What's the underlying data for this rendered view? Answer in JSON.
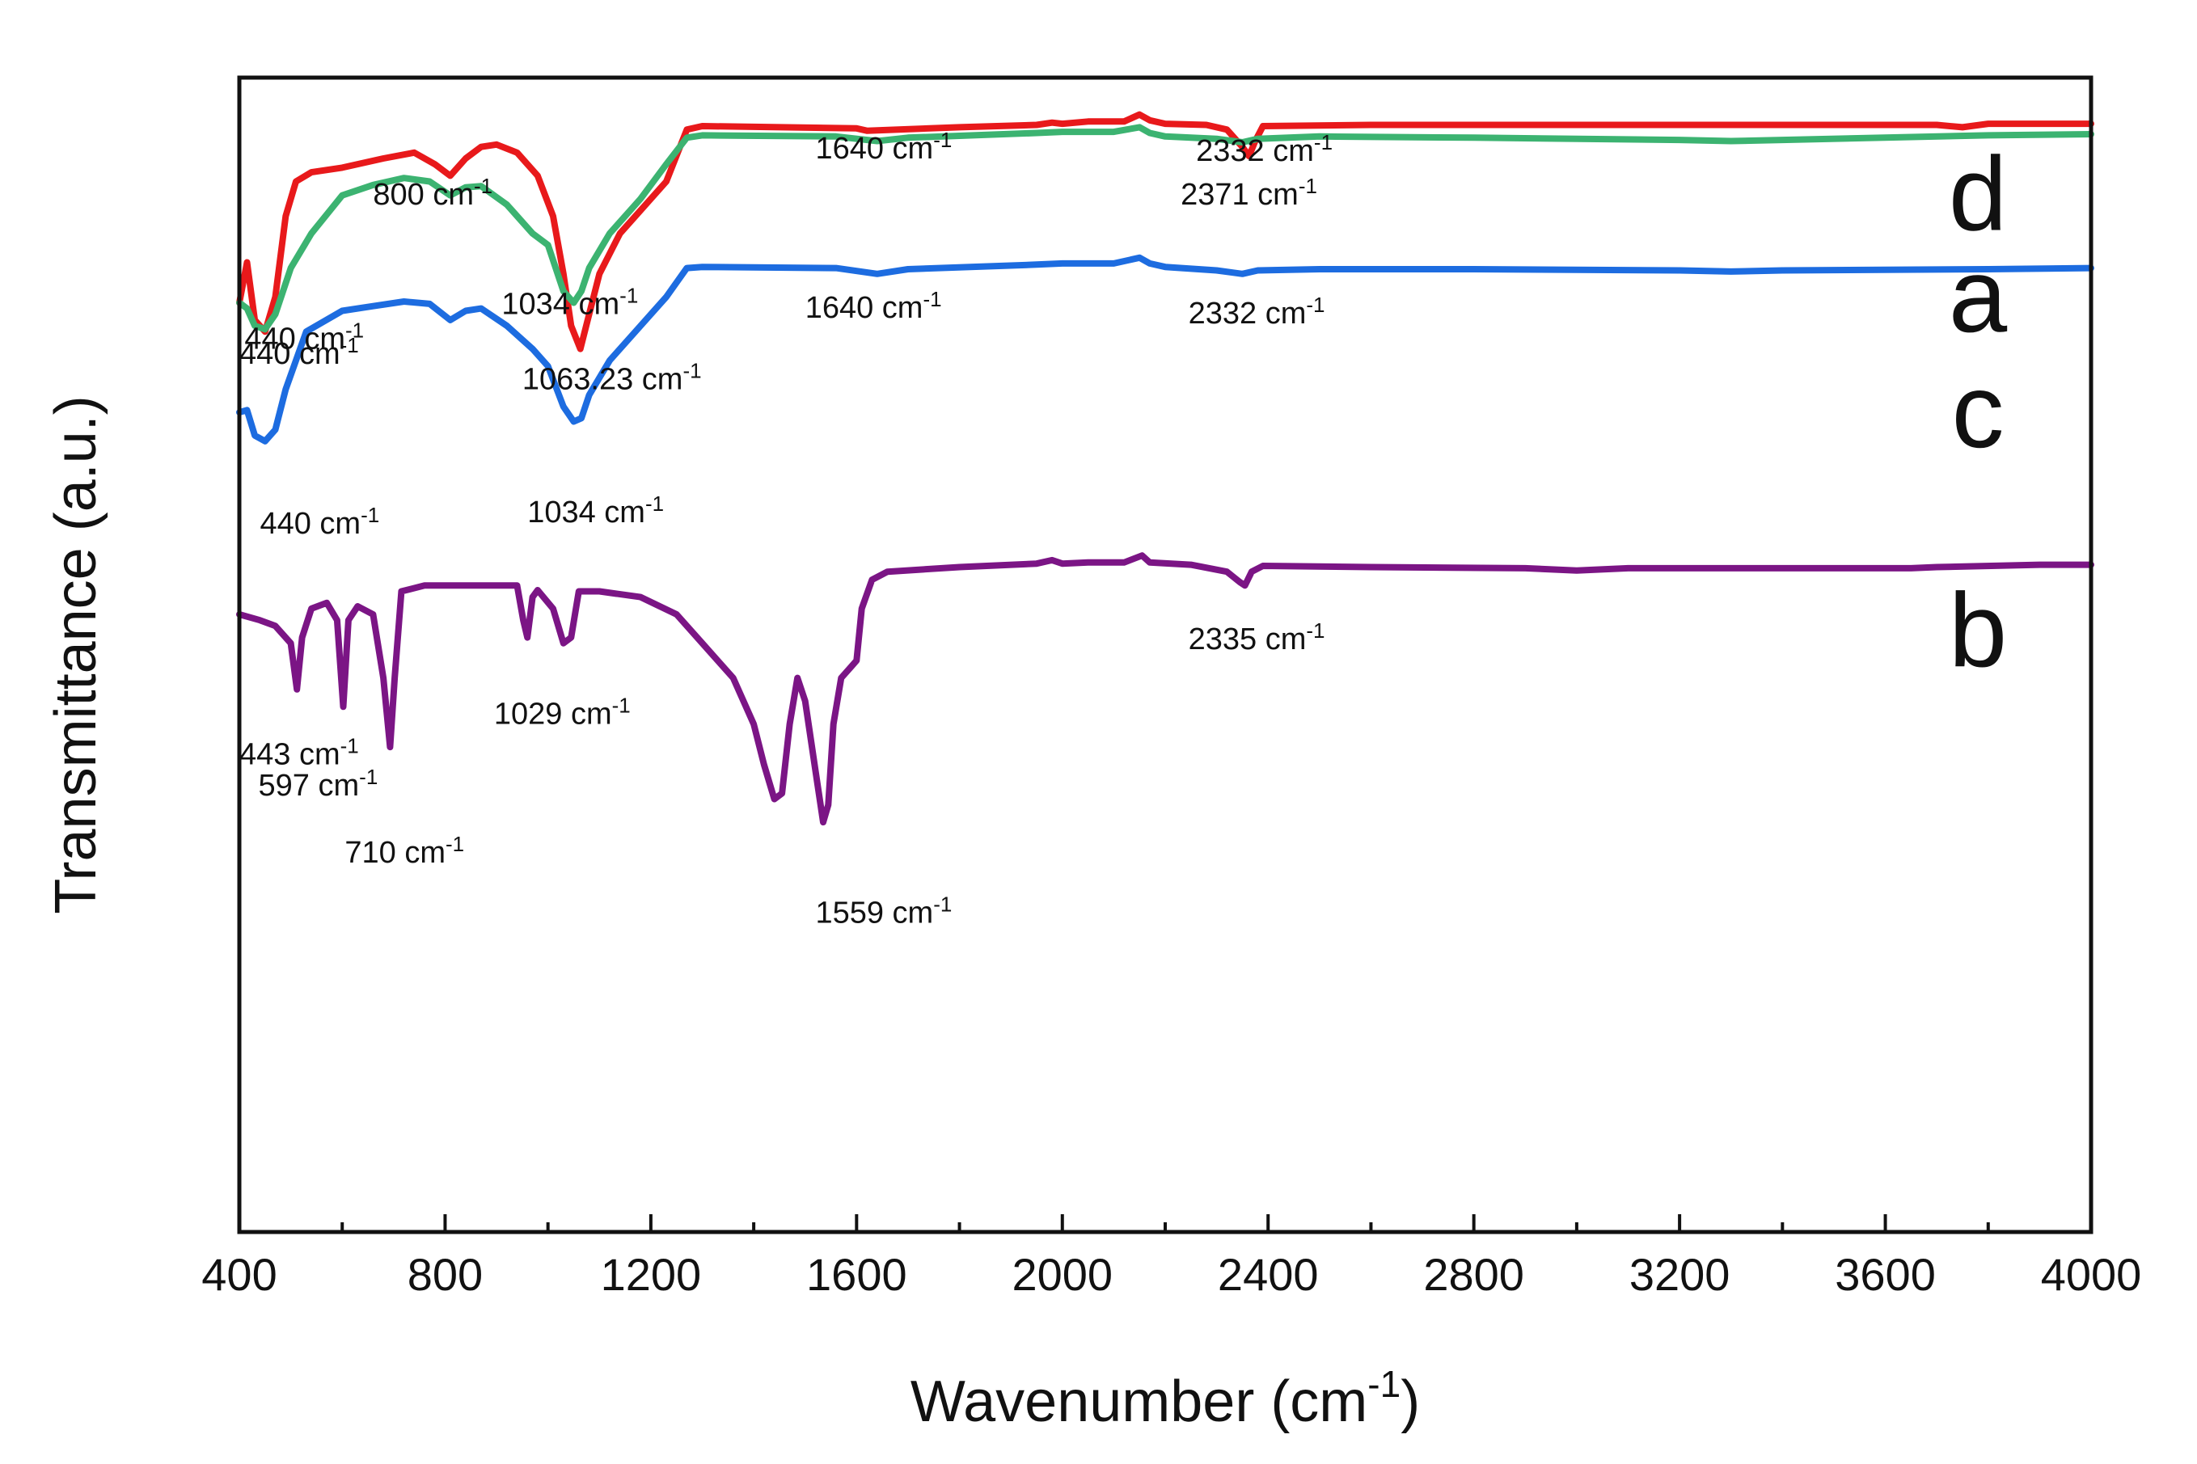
{
  "chart_data": {
    "type": "line",
    "xlabel": "Wavenumber (cm",
    "xlabel_sup": "-1",
    "xlabel_close": ")",
    "ylabel": "Transmittance (a.u.)",
    "xlim": [
      400,
      4000
    ],
    "ylim": [
      0,
      100
    ],
    "x_ticks": [
      400,
      800,
      1200,
      1600,
      2000,
      2400,
      2800,
      3200,
      3600,
      4000
    ],
    "grid": false,
    "peak_unit": "cm",
    "peak_unit_sup": "-1",
    "series": [
      {
        "name": "a",
        "color": "#e8191b",
        "points": [
          [
            400,
            80.5
          ],
          [
            415,
            84.0
          ],
          [
            430,
            79.0
          ],
          [
            450,
            78.0
          ],
          [
            470,
            81.0
          ],
          [
            490,
            88.0
          ],
          [
            510,
            91.0
          ],
          [
            540,
            91.8
          ],
          [
            600,
            92.2
          ],
          [
            680,
            93.0
          ],
          [
            740,
            93.5
          ],
          [
            780,
            92.5
          ],
          [
            810,
            91.5
          ],
          [
            840,
            93.0
          ],
          [
            870,
            94.0
          ],
          [
            900,
            94.2
          ],
          [
            940,
            93.5
          ],
          [
            980,
            91.5
          ],
          [
            1010,
            88.0
          ],
          [
            1030,
            83.0
          ],
          [
            1045,
            78.5
          ],
          [
            1063,
            76.5
          ],
          [
            1080,
            79.5
          ],
          [
            1100,
            83.0
          ],
          [
            1140,
            86.5
          ],
          [
            1180,
            88.5
          ],
          [
            1230,
            91.0
          ],
          [
            1270,
            95.5
          ],
          [
            1300,
            95.8
          ],
          [
            1600,
            95.6
          ],
          [
            1620,
            95.4
          ],
          [
            1800,
            95.7
          ],
          [
            1950,
            95.9
          ],
          [
            1980,
            96.1
          ],
          [
            2000,
            96.0
          ],
          [
            2050,
            96.2
          ],
          [
            2120,
            96.2
          ],
          [
            2150,
            96.8
          ],
          [
            2170,
            96.3
          ],
          [
            2200,
            96.0
          ],
          [
            2280,
            95.9
          ],
          [
            2320,
            95.5
          ],
          [
            2350,
            94.0
          ],
          [
            2363,
            93.2
          ],
          [
            2375,
            94.5
          ],
          [
            2390,
            95.8
          ],
          [
            2600,
            95.9
          ],
          [
            3000,
            95.9
          ],
          [
            3400,
            95.9
          ],
          [
            3700,
            95.9
          ],
          [
            3750,
            95.7
          ],
          [
            3800,
            96.0
          ],
          [
            4000,
            96.0
          ]
        ]
      },
      {
        "name": "b",
        "color": "#7b1585",
        "points": [
          [
            400,
            53.5
          ],
          [
            440,
            53.0
          ],
          [
            470,
            52.5
          ],
          [
            500,
            51.0
          ],
          [
            512,
            47.0
          ],
          [
            522,
            51.5
          ],
          [
            540,
            54.0
          ],
          [
            570,
            54.5
          ],
          [
            590,
            53.0
          ],
          [
            602,
            45.5
          ],
          [
            612,
            53.0
          ],
          [
            630,
            54.2
          ],
          [
            660,
            53.5
          ],
          [
            680,
            48.0
          ],
          [
            693,
            42.0
          ],
          [
            702,
            48.0
          ],
          [
            715,
            55.5
          ],
          [
            760,
            56.0
          ],
          [
            940,
            56.0
          ],
          [
            952,
            53.0
          ],
          [
            960,
            51.5
          ],
          [
            970,
            55.0
          ],
          [
            980,
            55.6
          ],
          [
            1010,
            54.0
          ],
          [
            1030,
            51.0
          ],
          [
            1045,
            51.5
          ],
          [
            1060,
            55.5
          ],
          [
            1100,
            55.5
          ],
          [
            1180,
            55.0
          ],
          [
            1250,
            53.5
          ],
          [
            1300,
            51.0
          ],
          [
            1360,
            48.0
          ],
          [
            1400,
            44.0
          ],
          [
            1420,
            40.5
          ],
          [
            1440,
            37.5
          ],
          [
            1455,
            38.0
          ],
          [
            1470,
            44.0
          ],
          [
            1485,
            48.0
          ],
          [
            1500,
            46.0
          ],
          [
            1520,
            40.0
          ],
          [
            1535,
            35.5
          ],
          [
            1545,
            37.0
          ],
          [
            1555,
            44.0
          ],
          [
            1570,
            48.0
          ],
          [
            1590,
            49.0
          ],
          [
            1600,
            49.5
          ],
          [
            1610,
            54.0
          ],
          [
            1630,
            56.5
          ],
          [
            1660,
            57.2
          ],
          [
            1800,
            57.6
          ],
          [
            1950,
            57.9
          ],
          [
            1980,
            58.2
          ],
          [
            2000,
            57.9
          ],
          [
            2050,
            58.0
          ],
          [
            2120,
            58.0
          ],
          [
            2155,
            58.6
          ],
          [
            2170,
            58.0
          ],
          [
            2250,
            57.8
          ],
          [
            2320,
            57.2
          ],
          [
            2345,
            56.3
          ],
          [
            2355,
            56.0
          ],
          [
            2368,
            57.2
          ],
          [
            2390,
            57.7
          ],
          [
            2600,
            57.6
          ],
          [
            2900,
            57.5
          ],
          [
            3000,
            57.3
          ],
          [
            3100,
            57.5
          ],
          [
            3300,
            57.5
          ],
          [
            3650,
            57.5
          ],
          [
            3700,
            57.6
          ],
          [
            3900,
            57.8
          ],
          [
            4000,
            57.8
          ]
        ]
      },
      {
        "name": "c",
        "color": "#1d6ce0",
        "points": [
          [
            400,
            71.0
          ],
          [
            415,
            71.2
          ],
          [
            430,
            69.0
          ],
          [
            450,
            68.5
          ],
          [
            470,
            69.5
          ],
          [
            490,
            73.0
          ],
          [
            530,
            78.0
          ],
          [
            600,
            79.8
          ],
          [
            660,
            80.2
          ],
          [
            720,
            80.6
          ],
          [
            770,
            80.4
          ],
          [
            810,
            79.0
          ],
          [
            840,
            79.8
          ],
          [
            870,
            80.0
          ],
          [
            920,
            78.5
          ],
          [
            970,
            76.5
          ],
          [
            1000,
            75.0
          ],
          [
            1030,
            71.5
          ],
          [
            1050,
            70.2
          ],
          [
            1065,
            70.5
          ],
          [
            1080,
            72.5
          ],
          [
            1120,
            75.5
          ],
          [
            1180,
            78.5
          ],
          [
            1230,
            81.0
          ],
          [
            1270,
            83.5
          ],
          [
            1300,
            83.6
          ],
          [
            1560,
            83.5
          ],
          [
            1640,
            83.0
          ],
          [
            1700,
            83.4
          ],
          [
            1950,
            83.8
          ],
          [
            2000,
            83.9
          ],
          [
            2100,
            83.9
          ],
          [
            2150,
            84.4
          ],
          [
            2170,
            83.9
          ],
          [
            2200,
            83.6
          ],
          [
            2300,
            83.3
          ],
          [
            2350,
            83.0
          ],
          [
            2380,
            83.3
          ],
          [
            2500,
            83.4
          ],
          [
            2800,
            83.4
          ],
          [
            3200,
            83.3
          ],
          [
            3300,
            83.2
          ],
          [
            3400,
            83.3
          ],
          [
            3800,
            83.4
          ],
          [
            4000,
            83.5
          ]
        ]
      },
      {
        "name": "d",
        "color": "#3cb371",
        "points": [
          [
            400,
            80.5
          ],
          [
            415,
            80.0
          ],
          [
            430,
            78.5
          ],
          [
            450,
            78.2
          ],
          [
            470,
            79.5
          ],
          [
            500,
            83.5
          ],
          [
            540,
            86.5
          ],
          [
            600,
            89.8
          ],
          [
            660,
            90.7
          ],
          [
            720,
            91.3
          ],
          [
            770,
            91.0
          ],
          [
            810,
            89.8
          ],
          [
            840,
            90.5
          ],
          [
            870,
            90.6
          ],
          [
            920,
            89.0
          ],
          [
            970,
            86.5
          ],
          [
            1000,
            85.5
          ],
          [
            1030,
            81.5
          ],
          [
            1050,
            80.5
          ],
          [
            1065,
            81.5
          ],
          [
            1080,
            83.5
          ],
          [
            1120,
            86.5
          ],
          [
            1180,
            89.5
          ],
          [
            1230,
            92.5
          ],
          [
            1270,
            94.8
          ],
          [
            1300,
            95.0
          ],
          [
            1560,
            94.9
          ],
          [
            1640,
            94.5
          ],
          [
            1700,
            94.8
          ],
          [
            1950,
            95.2
          ],
          [
            2000,
            95.3
          ],
          [
            2100,
            95.3
          ],
          [
            2150,
            95.7
          ],
          [
            2170,
            95.2
          ],
          [
            2200,
            94.9
          ],
          [
            2300,
            94.7
          ],
          [
            2350,
            94.4
          ],
          [
            2380,
            94.7
          ],
          [
            2500,
            94.9
          ],
          [
            2800,
            94.8
          ],
          [
            3200,
            94.6
          ],
          [
            3300,
            94.5
          ],
          [
            3400,
            94.6
          ],
          [
            3800,
            95.0
          ],
          [
            4000,
            95.1
          ]
        ]
      }
    ],
    "series_labels": [
      {
        "text": "a",
        "x": 3780,
        "y": 78.0
      },
      {
        "text": "b",
        "x": 3780,
        "y": 49.0
      },
      {
        "text": "c",
        "x": 3780,
        "y": 68.0
      },
      {
        "text": "d",
        "x": 3780,
        "y": 86.8
      }
    ],
    "annotations": [
      {
        "text": "440",
        "x": 400,
        "y": 75.2
      },
      {
        "text": "1063.23",
        "x": 950,
        "y": 73.0
      },
      {
        "text": "800",
        "x": 660,
        "y": 89.0
      },
      {
        "text": "2371",
        "x": 2230,
        "y": 89.0
      },
      {
        "text": "443",
        "x": 400,
        "y": 40.5
      },
      {
        "text": "597",
        "x": 437,
        "y": 37.8
      },
      {
        "text": "710",
        "x": 605,
        "y": 32.0
      },
      {
        "text": "1029",
        "x": 895,
        "y": 44.0
      },
      {
        "text": "1559",
        "x": 1520,
        "y": 26.8
      },
      {
        "text": "2335",
        "x": 2245,
        "y": 50.5
      },
      {
        "text": "440",
        "x": 440,
        "y": 60.5
      },
      {
        "text": "1034",
        "x": 960,
        "y": 61.5
      },
      {
        "text": "1640",
        "x": 1500,
        "y": 79.2
      },
      {
        "text": "2332",
        "x": 2245,
        "y": 78.7
      },
      {
        "text": "440",
        "x": 410,
        "y": 76.5
      },
      {
        "text": "1034",
        "x": 910,
        "y": 79.5
      },
      {
        "text": "1640",
        "x": 1520,
        "y": 93.0
      },
      {
        "text": "2332",
        "x": 2260,
        "y": 92.8
      }
    ]
  }
}
